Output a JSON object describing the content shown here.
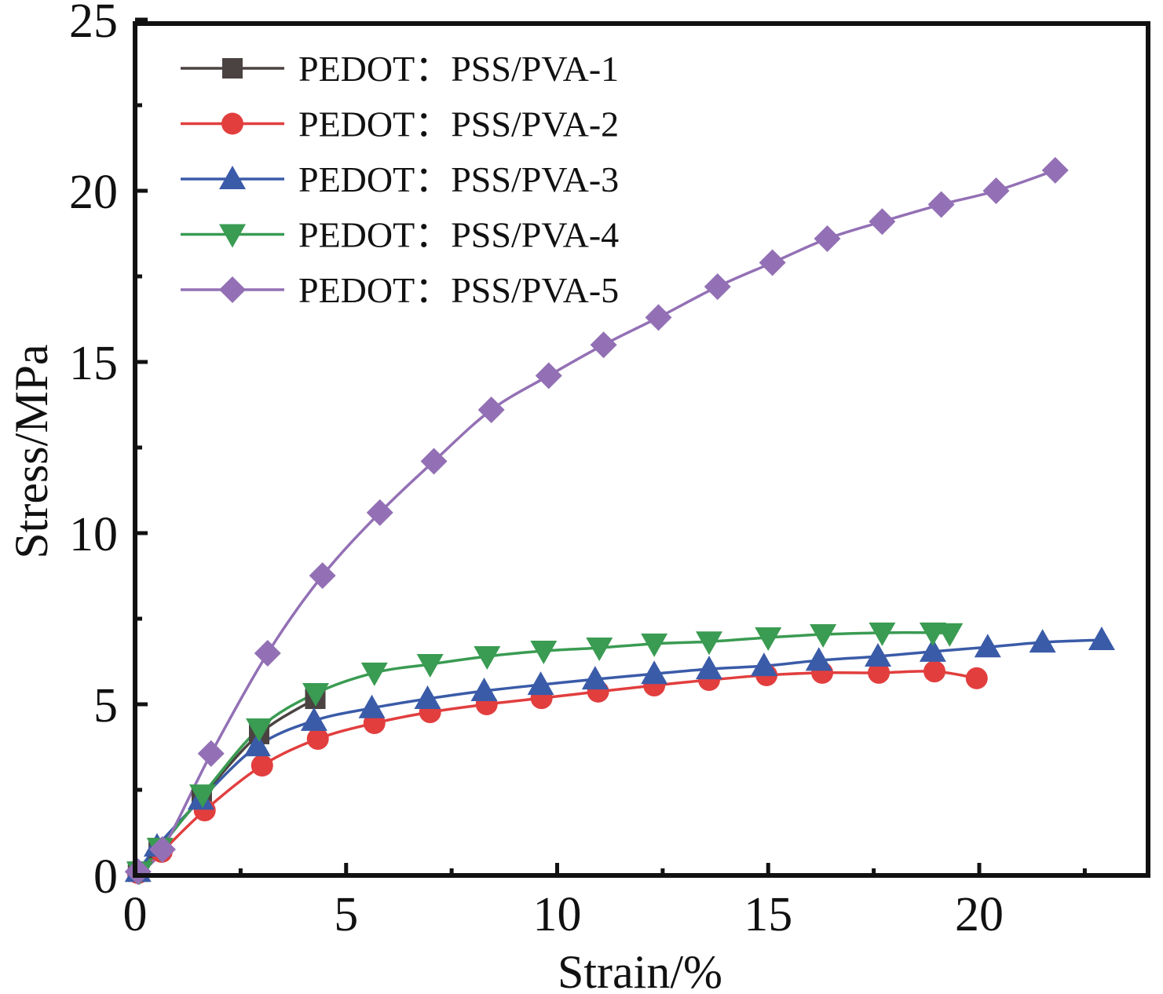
{
  "chart_data": {
    "type": "line",
    "title": "",
    "xlabel": "Strain/%",
    "ylabel": "Stress/MPa",
    "xlim": [
      0,
      24
    ],
    "ylim": [
      0,
      25
    ],
    "xticks": [
      0,
      5,
      10,
      15,
      20
    ],
    "xtick_labels": [
      "0",
      "5",
      "10",
      "15",
      "20"
    ],
    "x_minor_ticks": [
      2.5,
      7.5,
      12.5,
      17.5,
      22.5
    ],
    "yticks": [
      0,
      5,
      10,
      15,
      20,
      25
    ],
    "ytick_labels": [
      "0",
      "5",
      "10",
      "15",
      "20",
      "25"
    ],
    "y_minor_ticks": [
      2.5,
      7.5,
      12.5,
      17.5,
      22.5
    ],
    "grid": false,
    "legend_position": "top-left",
    "series": [
      {
        "name": "PEDOT：PSS/PVA-1",
        "color": "#4a4341",
        "marker": "square",
        "x": [
          0.07,
          0.56,
          1.58,
          2.94,
          4.27
        ],
        "y": [
          0.11,
          0.8,
          2.29,
          4.13,
          5.16
        ]
      },
      {
        "name": "PEDOT：PSS/PVA-2",
        "color": "#e23e3e",
        "marker": "circle",
        "x": [
          0.07,
          0.63,
          1.65,
          3.01,
          4.33,
          5.67,
          6.99,
          8.33,
          9.63,
          10.97,
          12.3,
          13.6,
          14.96,
          16.28,
          17.62,
          18.94,
          19.94
        ],
        "y": [
          0.07,
          0.69,
          1.9,
          3.21,
          3.99,
          4.45,
          4.77,
          5.0,
          5.18,
          5.37,
          5.55,
          5.71,
          5.85,
          5.92,
          5.92,
          5.96,
          5.76
        ]
      },
      {
        "name": "PEDOT：PSS/PVA-3",
        "color": "#3a5ba8",
        "marker": "triangle-up",
        "x": [
          0.07,
          0.52,
          1.56,
          2.9,
          4.24,
          5.61,
          6.93,
          8.27,
          9.61,
          10.9,
          12.3,
          13.6,
          14.9,
          16.2,
          17.6,
          18.9,
          20.2,
          21.5,
          22.9
        ],
        "y": [
          0.11,
          0.85,
          2.22,
          3.78,
          4.52,
          4.89,
          5.16,
          5.39,
          5.57,
          5.73,
          5.89,
          6.03,
          6.12,
          6.28,
          6.4,
          6.54,
          6.67,
          6.81,
          6.88
        ]
      },
      {
        "name": "PEDOT：PSS/PVA-4",
        "color": "#3a9b52",
        "marker": "triangle-down",
        "x": [
          0.11,
          0.59,
          1.6,
          2.94,
          4.28,
          5.67,
          6.99,
          8.34,
          9.68,
          11.0,
          12.3,
          13.6,
          15.0,
          16.3,
          17.7,
          18.9,
          19.3
        ],
        "y": [
          0.11,
          0.8,
          2.36,
          4.29,
          5.32,
          5.92,
          6.17,
          6.4,
          6.56,
          6.65,
          6.77,
          6.83,
          6.95,
          7.04,
          7.09,
          7.09,
          7.07
        ]
      },
      {
        "name": "PEDOT：PSS/PVA-5",
        "color": "#9370b5",
        "marker": "diamond",
        "x": [
          0.07,
          0.65,
          1.8,
          3.14,
          4.44,
          5.8,
          7.08,
          8.44,
          9.8,
          11.1,
          12.4,
          13.8,
          15.1,
          16.4,
          17.7,
          19.1,
          20.4,
          21.8
        ],
        "y": [
          0.11,
          0.76,
          3.56,
          6.49,
          8.76,
          10.6,
          12.1,
          13.6,
          14.6,
          15.5,
          16.3,
          17.2,
          17.9,
          18.6,
          19.1,
          19.6,
          20.0,
          20.6
        ]
      }
    ]
  }
}
